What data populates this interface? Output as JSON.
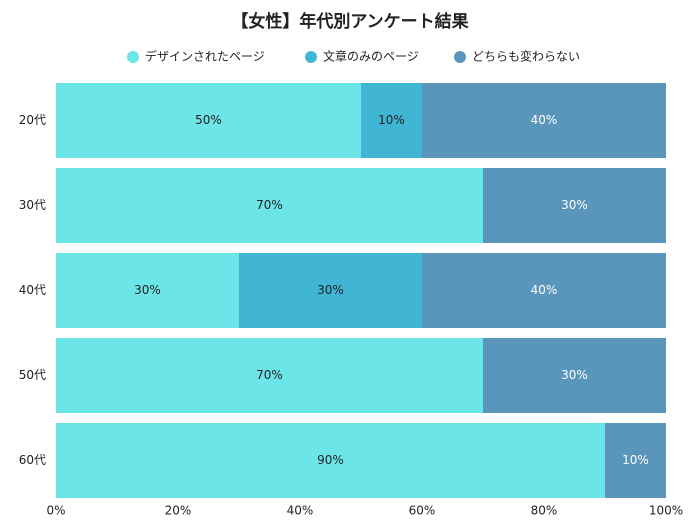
{
  "chart_data": {
    "type": "stacked_barh",
    "title": "【女性】年代別アンケート結果",
    "categories": [
      "20代",
      "30代",
      "40代",
      "50代",
      "60代"
    ],
    "series": [
      {
        "name": "デザインされたページ",
        "color": "#6ce5e8",
        "label_color": "#222222",
        "values": [
          50,
          70,
          30,
          70,
          90
        ],
        "value_labels": [
          "50%",
          "70%",
          "30%",
          "70%",
          "90%"
        ]
      },
      {
        "name": "文章のみのページ",
        "color": "#41b6d4",
        "label_color": "#222222",
        "values": [
          10,
          0,
          30,
          0,
          0
        ],
        "value_labels": [
          "10%",
          null,
          "30%",
          null,
          null
        ]
      },
      {
        "name": "どちらも変わらない",
        "color": "#5a96bb",
        "label_color": "#ffffff",
        "values": [
          40,
          30,
          40,
          30,
          10
        ],
        "value_labels": [
          "40%",
          "30%",
          "40%",
          "30%",
          "10%"
        ]
      }
    ],
    "xlim": [
      0,
      100
    ],
    "xticks": [
      {
        "value": 0,
        "label": "0%"
      },
      {
        "value": 20,
        "label": "20%"
      },
      {
        "value": 40,
        "label": "40%"
      },
      {
        "value": 60,
        "label": "60%"
      },
      {
        "value": 80,
        "label": "80%"
      },
      {
        "value": 100,
        "label": "100%"
      }
    ],
    "legend": "top"
  }
}
